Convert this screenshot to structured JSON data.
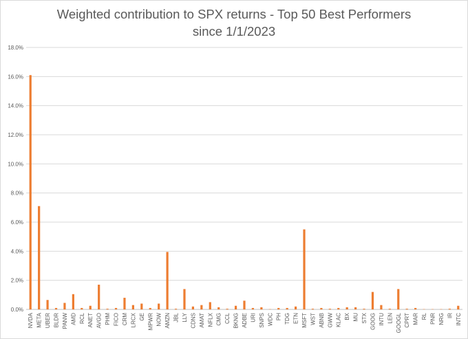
{
  "chart_data": {
    "type": "bar",
    "title_line1": "Weighted contribution to SPX returns - Top 50 Best Performers",
    "title_line2": "since 1/1/2023",
    "y_ticks": [
      "0.0%",
      "2.0%",
      "4.0%",
      "6.0%",
      "8.0%",
      "10.0%",
      "12.0%",
      "14.0%",
      "16.0%",
      "18.0%"
    ],
    "ylim": [
      0,
      18
    ],
    "grid": true,
    "bar_color": "#ED7D31",
    "grid_color": "#d9d9d9",
    "categories": [
      "NVDA",
      "META",
      "UBER",
      "BLDR",
      "PANW",
      "AMD",
      "RCL",
      "ANET",
      "AVGO",
      "PHM",
      "FICO",
      "CRM",
      "LRCX",
      "GE",
      "MPWR",
      "NOW",
      "AMZN",
      "JBL",
      "LLY",
      "CDNS",
      "AMAT",
      "NFLX",
      "CMG",
      "CCL",
      "BKNG",
      "ADBE",
      "URI",
      "SNPS",
      "WDC",
      "PH",
      "TDG",
      "ETN",
      "MSFT",
      "WST",
      "ABNB",
      "GWW",
      "KLAC",
      "BX",
      "MU",
      "STX",
      "GOOG",
      "INTU",
      "LEN",
      "GOOGL",
      "CPRT",
      "MAR",
      "RL",
      "PNR",
      "NRG",
      "IR",
      "INTC"
    ],
    "values": [
      16.1,
      7.1,
      0.65,
      0.1,
      0.45,
      1.05,
      0.1,
      0.25,
      1.7,
      0.05,
      0.1,
      0.8,
      0.3,
      0.4,
      0.1,
      0.4,
      3.95,
      0.05,
      1.4,
      0.2,
      0.3,
      0.5,
      0.15,
      0.05,
      0.25,
      0.6,
      0.1,
      0.15,
      0.02,
      0.1,
      0.1,
      0.2,
      5.5,
      0.05,
      0.1,
      0.05,
      0.1,
      0.15,
      0.15,
      0.05,
      1.2,
      0.3,
      0.05,
      1.4,
      0.05,
      0.1,
      0.02,
      0.02,
      0.02,
      0.05,
      0.25
    ]
  }
}
